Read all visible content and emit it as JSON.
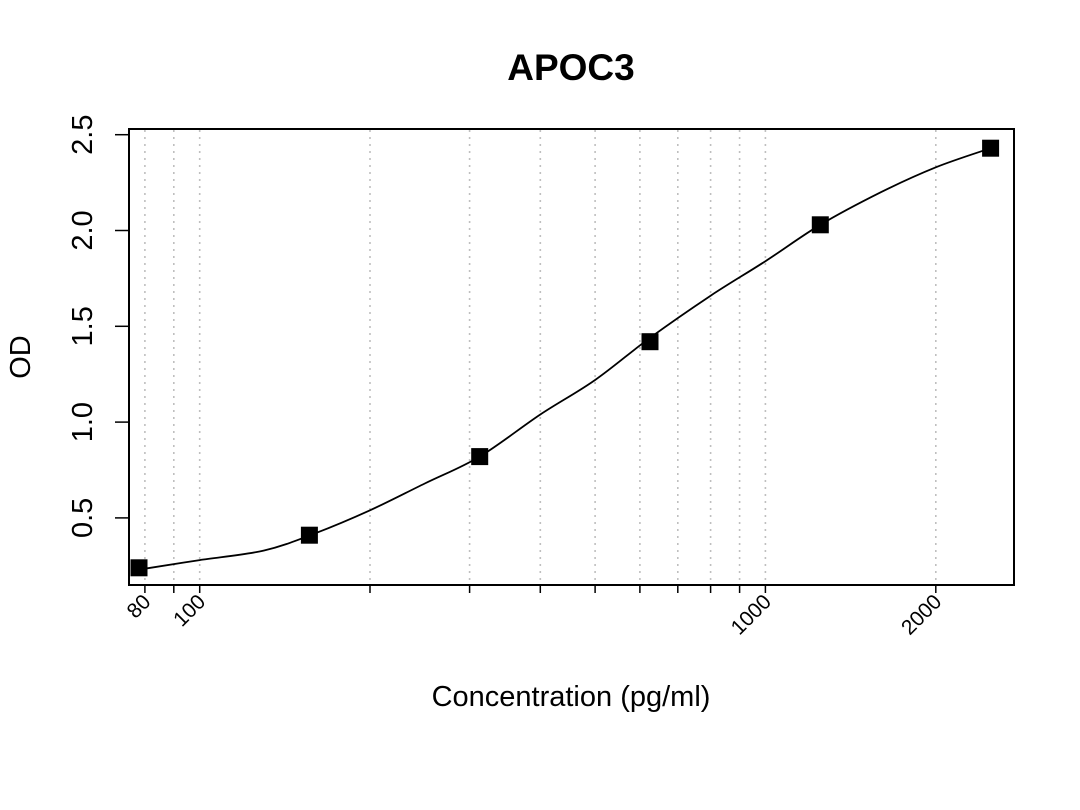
{
  "chart_data": {
    "type": "scatter",
    "title": "APOC3",
    "xlabel": "Concentration (pg/ml)",
    "ylabel": "OD",
    "x_scale": "log",
    "xlim": [
      75,
      2750
    ],
    "ylim": [
      0.15,
      2.53
    ],
    "x_tick_labels": [
      {
        "value": 80,
        "label": "80"
      },
      {
        "value": 100,
        "label": "100"
      },
      {
        "value": 1000,
        "label": "1000"
      },
      {
        "value": 2000,
        "label": "2000"
      }
    ],
    "x_minor_ticks": [
      90,
      200,
      300,
      400,
      500,
      600,
      700,
      800,
      900
    ],
    "y_ticks": [
      {
        "value": 0.5,
        "label": "0.5"
      },
      {
        "value": 1.0,
        "label": "1.0"
      },
      {
        "value": 1.5,
        "label": "1.5"
      },
      {
        "value": 2.0,
        "label": "2.0"
      },
      {
        "value": 2.5,
        "label": "2.5"
      }
    ],
    "grid": "vertical dotted gridlines at x ticks",
    "marker": "filled square",
    "points": [
      {
        "x": 78.1,
        "y": 0.24
      },
      {
        "x": 156.3,
        "y": 0.41
      },
      {
        "x": 312.5,
        "y": 0.82
      },
      {
        "x": 625,
        "y": 1.42
      },
      {
        "x": 1250,
        "y": 2.03
      },
      {
        "x": 2500,
        "y": 2.43
      }
    ],
    "curve": {
      "type": "four-parameter logistic fit",
      "points": [
        {
          "x": 80,
          "y": 0.235
        },
        {
          "x": 100,
          "y": 0.28
        },
        {
          "x": 130,
          "y": 0.33
        },
        {
          "x": 160,
          "y": 0.42
        },
        {
          "x": 200,
          "y": 0.54
        },
        {
          "x": 250,
          "y": 0.68
        },
        {
          "x": 312.5,
          "y": 0.82
        },
        {
          "x": 400,
          "y": 1.04
        },
        {
          "x": 500,
          "y": 1.22
        },
        {
          "x": 625,
          "y": 1.44
        },
        {
          "x": 800,
          "y": 1.66
        },
        {
          "x": 1000,
          "y": 1.84
        },
        {
          "x": 1250,
          "y": 2.03
        },
        {
          "x": 1600,
          "y": 2.2
        },
        {
          "x": 2000,
          "y": 2.33
        },
        {
          "x": 2500,
          "y": 2.43
        }
      ]
    }
  },
  "colors": {
    "background": "#ffffff",
    "axis": "#000000",
    "grid": "#bfbfbf",
    "marker": "#000000",
    "curve": "#000000"
  }
}
